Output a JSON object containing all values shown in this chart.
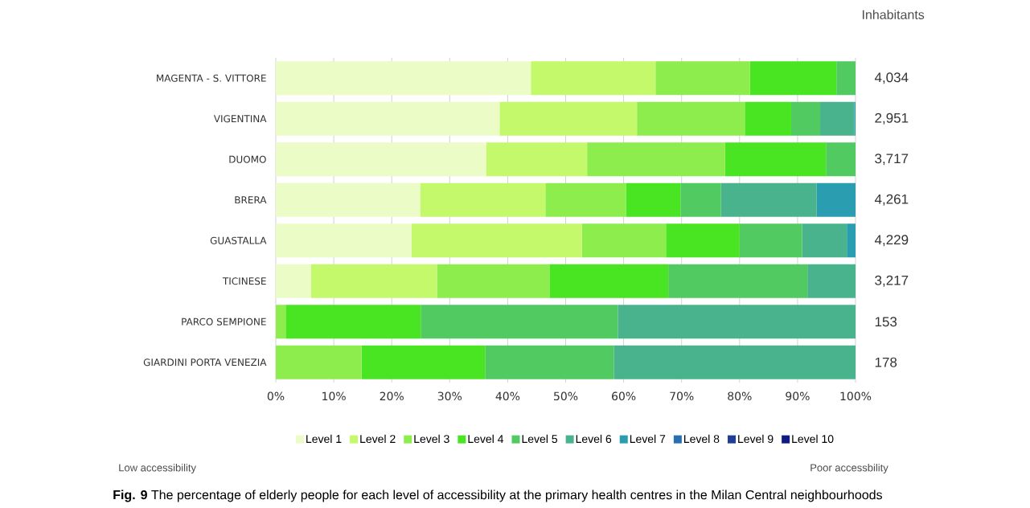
{
  "chart_data": {
    "type": "bar",
    "orientation": "horizontal",
    "stacked": true,
    "title": "**Fig. 9** The percentage of elderly people for each level of accessibility at the primary health centres in the Milan Central neighbourhoods",
    "categories": [
      "MAGENTA - S. VITTORE",
      "VIGENTINA",
      "DUOMO",
      "BRERA",
      "GUASTALLA",
      "TICINESE",
      "PARCO SEMPIONE",
      "GIARDINI PORTA VENEZIA"
    ],
    "series": [
      {
        "name": "Level 1",
        "color": "#ebfcc6",
        "values": [
          44.0,
          38.6,
          36.3,
          24.9,
          23.4,
          6.1,
          0,
          0
        ]
      },
      {
        "name": "Level 2",
        "color": "#c3f96a",
        "values": [
          21.5,
          23.7,
          17.4,
          21.6,
          29.4,
          21.7,
          0,
          0
        ]
      },
      {
        "name": "Level 3",
        "color": "#8ced4d",
        "values": [
          16.3,
          18.6,
          23.8,
          13.9,
          14.5,
          19.4,
          1.7,
          14.8
        ]
      },
      {
        "name": "Level 4",
        "color": "#4ae522",
        "values": [
          14.9,
          8.0,
          17.4,
          9.4,
          12.7,
          20.5,
          23.3,
          21.3
        ]
      },
      {
        "name": "Level 5",
        "color": "#52ca62",
        "values": [
          3.3,
          5.0,
          5.1,
          7.0,
          10.8,
          24.0,
          34.0,
          22.2
        ]
      },
      {
        "name": "Level 6",
        "color": "#48b38c",
        "values": [
          0,
          5.9,
          0,
          16.5,
          7.7,
          8.3,
          41.0,
          41.7
        ]
      },
      {
        "name": "Level 7",
        "color": "#2b9db0",
        "values": [
          0,
          0.2,
          0,
          6.7,
          1.5,
          0,
          0,
          0
        ]
      },
      {
        "name": "Level 8",
        "color": "#2a6fad",
        "values": [
          0,
          0,
          0,
          0,
          0,
          0,
          0,
          0
        ]
      },
      {
        "name": "Level 9",
        "color": "#1f3e97",
        "values": [
          0,
          0,
          0,
          0,
          0,
          0,
          0,
          0
        ]
      },
      {
        "name": "Level 10",
        "color": "#0f1a82",
        "values": [
          0,
          0,
          0,
          0,
          0,
          0,
          0,
          0
        ]
      }
    ],
    "xlim": [
      0,
      100
    ],
    "xticks": [
      {
        "value": 0,
        "label": "0%"
      },
      {
        "value": 10,
        "label": "10%"
      },
      {
        "value": 20,
        "label": "20%"
      },
      {
        "value": 30,
        "label": "30%"
      },
      {
        "value": 40,
        "label": "40%"
      },
      {
        "value": 50,
        "label": "50%"
      },
      {
        "value": 60,
        "label": "60%"
      },
      {
        "value": 70,
        "label": "70%"
      },
      {
        "value": 80,
        "label": "80%"
      },
      {
        "value": 90,
        "label": "90%"
      },
      {
        "value": 100,
        "label": "100%"
      }
    ],
    "grid": "x",
    "legend": "bottom",
    "annotations": [
      "Inhabitants",
      "4,034",
      "2,951",
      "3,717",
      "4,261",
      "4,229",
      "3,217",
      "153",
      "178",
      "Low accessibility",
      "Poor accessbility"
    ]
  }
}
